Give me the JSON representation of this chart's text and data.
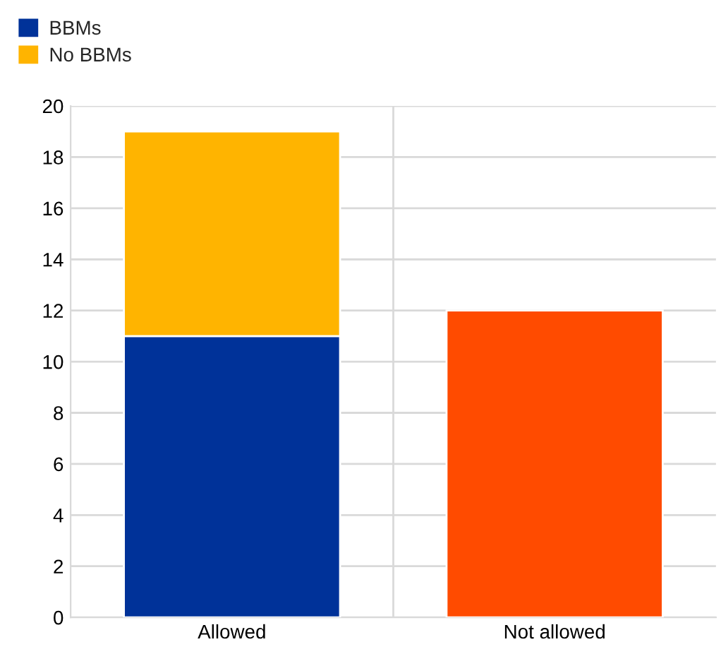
{
  "chart_data": {
    "type": "bar",
    "stacked": true,
    "categories": [
      "Allowed",
      "Not allowed"
    ],
    "series": [
      {
        "name": "BBMs",
        "color": "#003299",
        "values": [
          11,
          null
        ]
      },
      {
        "name": "No BBMs",
        "color": "#ffb400",
        "values": [
          8,
          null
        ]
      },
      {
        "color": "#ff4b00",
        "values": [
          null,
          12
        ]
      }
    ],
    "ylim": [
      0,
      20
    ],
    "yticks": [
      0,
      2,
      4,
      6,
      8,
      10,
      12,
      14,
      16,
      18,
      20
    ],
    "grid": true,
    "legend": "top left"
  }
}
